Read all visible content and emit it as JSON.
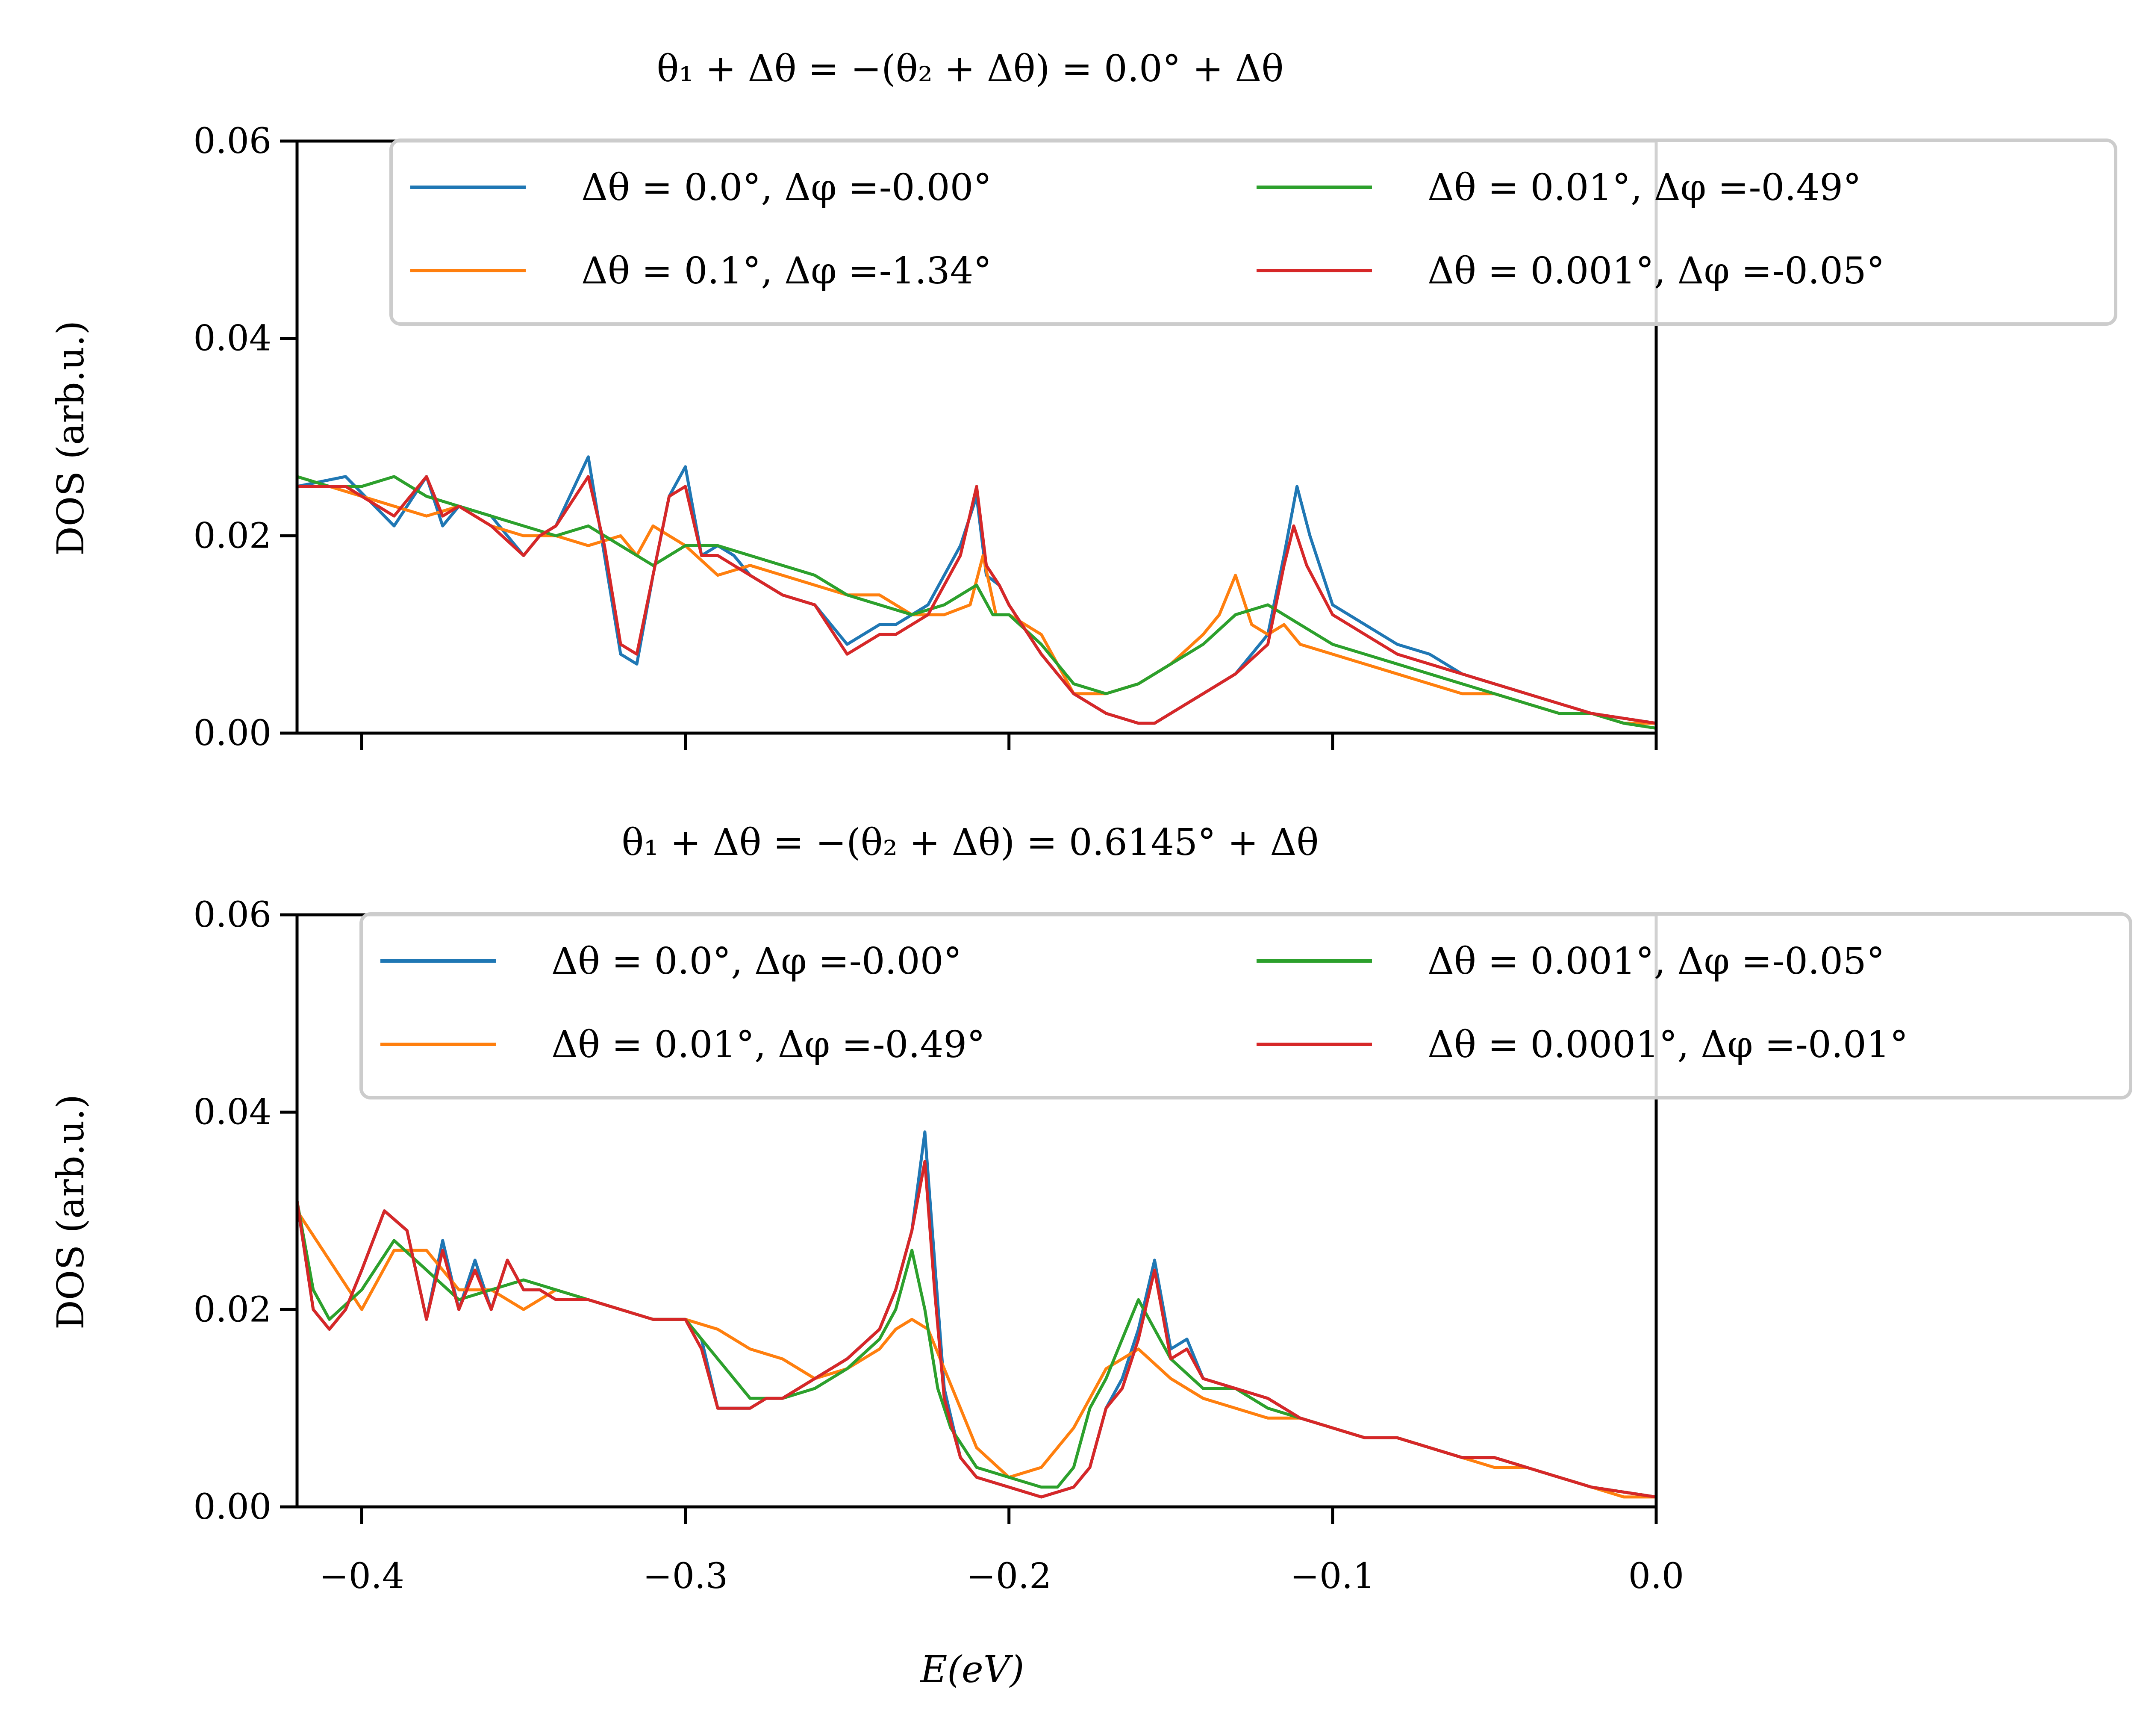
{
  "chart_data": [
    {
      "type": "line",
      "title": "θ₁ + Δθ = −(θ₂ + Δθ) = 0.0° + Δθ",
      "xlabel": "",
      "ylabel": "DOS (arb.u.)",
      "xlim": [
        -0.42,
        0.0
      ],
      "ylim": [
        0.0,
        0.06
      ],
      "yticks": [
        0.0,
        0.02,
        0.04,
        0.06
      ],
      "ytick_labels": [
        "0.00",
        "0.02",
        "0.04",
        "0.06"
      ],
      "xticks": [
        -0.4,
        -0.3,
        -0.2,
        -0.1,
        0.0
      ],
      "xtick_labels": [],
      "grid": false,
      "legend_position": "top",
      "series": [
        {
          "name": "Δθ = 0.0°, Δφ =-0.00°",
          "color": "#1f77b4",
          "x": [
            -0.42,
            -0.405,
            -0.39,
            -0.38,
            -0.375,
            -0.37,
            -0.36,
            -0.35,
            -0.345,
            -0.34,
            -0.33,
            -0.325,
            -0.32,
            -0.315,
            -0.31,
            -0.305,
            -0.3,
            -0.295,
            -0.29,
            -0.285,
            -0.28,
            -0.27,
            -0.26,
            -0.25,
            -0.24,
            -0.235,
            -0.225,
            -0.215,
            -0.21,
            -0.207,
            -0.203,
            -0.2,
            -0.19,
            -0.18,
            -0.17,
            -0.16,
            -0.155,
            -0.15,
            -0.14,
            -0.13,
            -0.12,
            -0.115,
            -0.111,
            -0.107,
            -0.1,
            -0.09,
            -0.08,
            -0.07,
            -0.06,
            -0.05,
            -0.04,
            -0.03,
            -0.02,
            -0.01,
            0.0
          ],
          "y": [
            0.025,
            0.026,
            0.021,
            0.026,
            0.021,
            0.023,
            0.022,
            0.018,
            0.02,
            0.021,
            0.028,
            0.018,
            0.008,
            0.007,
            0.016,
            0.024,
            0.027,
            0.018,
            0.019,
            0.018,
            0.016,
            0.014,
            0.013,
            0.009,
            0.011,
            0.011,
            0.013,
            0.019,
            0.024,
            0.016,
            0.015,
            0.013,
            0.008,
            0.004,
            0.002,
            0.001,
            0.001,
            0.002,
            0.004,
            0.006,
            0.01,
            0.018,
            0.025,
            0.02,
            0.013,
            0.011,
            0.009,
            0.008,
            0.006,
            0.005,
            0.004,
            0.003,
            0.002,
            0.0015,
            0.001
          ]
        },
        {
          "name": "Δθ = 0.1°, Δφ =-1.34°",
          "color": "#ff7f0e",
          "x": [
            -0.42,
            -0.41,
            -0.4,
            -0.39,
            -0.38,
            -0.37,
            -0.36,
            -0.35,
            -0.34,
            -0.33,
            -0.32,
            -0.315,
            -0.31,
            -0.3,
            -0.29,
            -0.28,
            -0.27,
            -0.26,
            -0.25,
            -0.24,
            -0.23,
            -0.22,
            -0.212,
            -0.208,
            -0.204,
            -0.2,
            -0.19,
            -0.18,
            -0.17,
            -0.16,
            -0.15,
            -0.14,
            -0.135,
            -0.13,
            -0.125,
            -0.12,
            -0.115,
            -0.11,
            -0.1,
            -0.09,
            -0.08,
            -0.07,
            -0.06,
            -0.05,
            -0.04,
            -0.03,
            -0.02,
            -0.01,
            0.0
          ],
          "y": [
            0.026,
            0.025,
            0.024,
            0.023,
            0.022,
            0.023,
            0.021,
            0.02,
            0.02,
            0.019,
            0.02,
            0.018,
            0.021,
            0.019,
            0.016,
            0.017,
            0.016,
            0.015,
            0.014,
            0.014,
            0.012,
            0.012,
            0.013,
            0.018,
            0.012,
            0.012,
            0.01,
            0.004,
            0.004,
            0.005,
            0.007,
            0.01,
            0.012,
            0.016,
            0.011,
            0.01,
            0.011,
            0.009,
            0.008,
            0.007,
            0.006,
            0.005,
            0.004,
            0.004,
            0.003,
            0.002,
            0.002,
            0.001,
            0.001
          ]
        },
        {
          "name": "Δθ = 0.01°, Δφ =-0.49°",
          "color": "#2ca02c",
          "x": [
            -0.42,
            -0.41,
            -0.4,
            -0.39,
            -0.38,
            -0.37,
            -0.36,
            -0.35,
            -0.34,
            -0.33,
            -0.32,
            -0.31,
            -0.3,
            -0.29,
            -0.28,
            -0.27,
            -0.26,
            -0.25,
            -0.24,
            -0.23,
            -0.22,
            -0.21,
            -0.205,
            -0.2,
            -0.19,
            -0.18,
            -0.17,
            -0.16,
            -0.15,
            -0.14,
            -0.13,
            -0.12,
            -0.11,
            -0.1,
            -0.09,
            -0.08,
            -0.07,
            -0.06,
            -0.05,
            -0.04,
            -0.03,
            -0.02,
            -0.01,
            0.0
          ],
          "y": [
            0.026,
            0.025,
            0.025,
            0.026,
            0.024,
            0.023,
            0.022,
            0.021,
            0.02,
            0.021,
            0.019,
            0.017,
            0.019,
            0.019,
            0.018,
            0.017,
            0.016,
            0.014,
            0.013,
            0.012,
            0.013,
            0.015,
            0.012,
            0.012,
            0.009,
            0.005,
            0.004,
            0.005,
            0.007,
            0.009,
            0.012,
            0.013,
            0.011,
            0.009,
            0.008,
            0.007,
            0.006,
            0.005,
            0.004,
            0.003,
            0.002,
            0.002,
            0.001,
            0.0005
          ]
        },
        {
          "name": "Δθ = 0.001°, Δφ =-0.05°",
          "color": "#d62728",
          "x": [
            -0.42,
            -0.405,
            -0.39,
            -0.38,
            -0.375,
            -0.37,
            -0.36,
            -0.35,
            -0.345,
            -0.34,
            -0.33,
            -0.325,
            -0.32,
            -0.315,
            -0.31,
            -0.305,
            -0.3,
            -0.295,
            -0.29,
            -0.285,
            -0.28,
            -0.27,
            -0.26,
            -0.25,
            -0.24,
            -0.235,
            -0.225,
            -0.215,
            -0.21,
            -0.207,
            -0.203,
            -0.2,
            -0.19,
            -0.18,
            -0.17,
            -0.16,
            -0.155,
            -0.15,
            -0.14,
            -0.13,
            -0.12,
            -0.115,
            -0.112,
            -0.108,
            -0.1,
            -0.09,
            -0.08,
            -0.07,
            -0.06,
            -0.05,
            -0.04,
            -0.03,
            -0.02,
            -0.01,
            0.0
          ],
          "y": [
            0.025,
            0.025,
            0.022,
            0.026,
            0.022,
            0.023,
            0.021,
            0.018,
            0.02,
            0.021,
            0.026,
            0.019,
            0.009,
            0.008,
            0.016,
            0.024,
            0.025,
            0.018,
            0.018,
            0.017,
            0.016,
            0.014,
            0.013,
            0.008,
            0.01,
            0.01,
            0.012,
            0.018,
            0.025,
            0.017,
            0.015,
            0.013,
            0.008,
            0.004,
            0.002,
            0.001,
            0.001,
            0.002,
            0.004,
            0.006,
            0.009,
            0.017,
            0.021,
            0.017,
            0.012,
            0.01,
            0.008,
            0.007,
            0.006,
            0.005,
            0.004,
            0.003,
            0.002,
            0.0015,
            0.001
          ]
        }
      ]
    },
    {
      "type": "line",
      "title": "θ₁ + Δθ = −(θ₂ + Δθ) = 0.6145° + Δθ",
      "xlabel": "E(eV)",
      "ylabel": "DOS (arb.u.)",
      "xlim": [
        -0.42,
        0.0
      ],
      "ylim": [
        0.0,
        0.06
      ],
      "yticks": [
        0.0,
        0.02,
        0.04,
        0.06
      ],
      "ytick_labels": [
        "0.00",
        "0.02",
        "0.04",
        "0.06"
      ],
      "xticks": [
        -0.4,
        -0.3,
        -0.2,
        -0.1,
        0.0
      ],
      "xtick_labels": [
        "−0.4",
        "−0.3",
        "−0.2",
        "−0.1",
        "0.0"
      ],
      "grid": false,
      "legend_position": "top",
      "series": [
        {
          "name": "Δθ = 0.0°, Δφ =-0.00°",
          "color": "#1f77b4",
          "x": [
            -0.42,
            -0.415,
            -0.41,
            -0.405,
            -0.4,
            -0.393,
            -0.386,
            -0.38,
            -0.375,
            -0.37,
            -0.365,
            -0.36,
            -0.355,
            -0.35,
            -0.345,
            -0.34,
            -0.33,
            -0.32,
            -0.31,
            -0.3,
            -0.295,
            -0.29,
            -0.285,
            -0.28,
            -0.275,
            -0.27,
            -0.26,
            -0.25,
            -0.24,
            -0.235,
            -0.23,
            -0.226,
            -0.223,
            -0.22,
            -0.215,
            -0.21,
            -0.2,
            -0.19,
            -0.18,
            -0.175,
            -0.17,
            -0.165,
            -0.16,
            -0.155,
            -0.15,
            -0.145,
            -0.14,
            -0.13,
            -0.12,
            -0.11,
            -0.1,
            -0.09,
            -0.08,
            -0.07,
            -0.06,
            -0.05,
            -0.04,
            -0.03,
            -0.02,
            -0.01,
            0.0
          ],
          "y": [
            0.031,
            0.02,
            0.018,
            0.02,
            0.024,
            0.03,
            0.028,
            0.019,
            0.027,
            0.02,
            0.025,
            0.02,
            0.025,
            0.022,
            0.022,
            0.021,
            0.021,
            0.02,
            0.019,
            0.019,
            0.017,
            0.01,
            0.01,
            0.01,
            0.011,
            0.011,
            0.013,
            0.015,
            0.018,
            0.022,
            0.028,
            0.038,
            0.025,
            0.012,
            0.005,
            0.003,
            0.002,
            0.001,
            0.002,
            0.004,
            0.01,
            0.013,
            0.018,
            0.025,
            0.016,
            0.017,
            0.013,
            0.012,
            0.011,
            0.009,
            0.008,
            0.007,
            0.007,
            0.006,
            0.005,
            0.005,
            0.004,
            0.003,
            0.002,
            0.0015,
            0.001
          ]
        },
        {
          "name": "Δθ = 0.01°, Δφ =-0.49°",
          "color": "#ff7f0e",
          "x": [
            -0.42,
            -0.41,
            -0.4,
            -0.39,
            -0.38,
            -0.37,
            -0.36,
            -0.35,
            -0.34,
            -0.33,
            -0.32,
            -0.31,
            -0.3,
            -0.29,
            -0.28,
            -0.27,
            -0.26,
            -0.25,
            -0.24,
            -0.235,
            -0.23,
            -0.225,
            -0.22,
            -0.21,
            -0.2,
            -0.19,
            -0.18,
            -0.17,
            -0.165,
            -0.16,
            -0.15,
            -0.14,
            -0.13,
            -0.12,
            -0.11,
            -0.1,
            -0.09,
            -0.08,
            -0.07,
            -0.06,
            -0.05,
            -0.04,
            -0.03,
            -0.02,
            -0.01,
            0.0
          ],
          "y": [
            0.03,
            0.025,
            0.02,
            0.026,
            0.026,
            0.022,
            0.022,
            0.02,
            0.022,
            0.021,
            0.02,
            0.019,
            0.019,
            0.018,
            0.016,
            0.015,
            0.013,
            0.014,
            0.016,
            0.018,
            0.019,
            0.018,
            0.014,
            0.006,
            0.003,
            0.004,
            0.008,
            0.014,
            0.015,
            0.016,
            0.013,
            0.011,
            0.01,
            0.009,
            0.009,
            0.008,
            0.007,
            0.007,
            0.006,
            0.005,
            0.004,
            0.004,
            0.003,
            0.002,
            0.001,
            0.001
          ]
        },
        {
          "name": "Δθ = 0.001°, Δφ =-0.05°",
          "color": "#2ca02c",
          "x": [
            -0.42,
            -0.415,
            -0.41,
            -0.4,
            -0.39,
            -0.38,
            -0.37,
            -0.36,
            -0.35,
            -0.34,
            -0.33,
            -0.32,
            -0.31,
            -0.3,
            -0.29,
            -0.28,
            -0.27,
            -0.26,
            -0.25,
            -0.24,
            -0.235,
            -0.23,
            -0.226,
            -0.222,
            -0.218,
            -0.21,
            -0.2,
            -0.19,
            -0.185,
            -0.18,
            -0.175,
            -0.17,
            -0.165,
            -0.16,
            -0.155,
            -0.15,
            -0.14,
            -0.13,
            -0.12,
            -0.11,
            -0.1,
            -0.09,
            -0.08,
            -0.07,
            -0.06,
            -0.05,
            -0.04,
            -0.03,
            -0.02,
            -0.01,
            0.0
          ],
          "y": [
            0.031,
            0.022,
            0.019,
            0.022,
            0.027,
            0.024,
            0.021,
            0.022,
            0.023,
            0.022,
            0.021,
            0.02,
            0.019,
            0.019,
            0.015,
            0.011,
            0.011,
            0.012,
            0.014,
            0.017,
            0.02,
            0.026,
            0.02,
            0.012,
            0.008,
            0.004,
            0.003,
            0.002,
            0.002,
            0.004,
            0.01,
            0.013,
            0.017,
            0.021,
            0.018,
            0.015,
            0.012,
            0.012,
            0.01,
            0.009,
            0.008,
            0.007,
            0.007,
            0.006,
            0.005,
            0.005,
            0.004,
            0.003,
            0.002,
            0.0015,
            0.001
          ]
        },
        {
          "name": "Δθ = 0.0001°, Δφ =-0.01°",
          "color": "#d62728",
          "x": [
            -0.42,
            -0.415,
            -0.41,
            -0.405,
            -0.4,
            -0.393,
            -0.386,
            -0.38,
            -0.375,
            -0.37,
            -0.365,
            -0.36,
            -0.355,
            -0.35,
            -0.345,
            -0.34,
            -0.33,
            -0.32,
            -0.31,
            -0.3,
            -0.295,
            -0.29,
            -0.285,
            -0.28,
            -0.275,
            -0.27,
            -0.26,
            -0.25,
            -0.24,
            -0.235,
            -0.23,
            -0.226,
            -0.223,
            -0.22,
            -0.215,
            -0.21,
            -0.2,
            -0.19,
            -0.18,
            -0.175,
            -0.17,
            -0.165,
            -0.16,
            -0.155,
            -0.15,
            -0.145,
            -0.14,
            -0.13,
            -0.12,
            -0.11,
            -0.1,
            -0.09,
            -0.08,
            -0.07,
            -0.06,
            -0.05,
            -0.04,
            -0.03,
            -0.02,
            -0.01,
            0.0
          ],
          "y": [
            0.031,
            0.02,
            0.018,
            0.02,
            0.024,
            0.03,
            0.028,
            0.019,
            0.026,
            0.02,
            0.024,
            0.02,
            0.025,
            0.022,
            0.022,
            0.021,
            0.021,
            0.02,
            0.019,
            0.019,
            0.016,
            0.01,
            0.01,
            0.01,
            0.011,
            0.011,
            0.013,
            0.015,
            0.018,
            0.022,
            0.028,
            0.035,
            0.022,
            0.011,
            0.005,
            0.003,
            0.002,
            0.001,
            0.002,
            0.004,
            0.01,
            0.012,
            0.017,
            0.024,
            0.015,
            0.016,
            0.013,
            0.012,
            0.011,
            0.009,
            0.008,
            0.007,
            0.007,
            0.006,
            0.005,
            0.005,
            0.004,
            0.003,
            0.002,
            0.0015,
            0.001
          ]
        }
      ]
    }
  ]
}
